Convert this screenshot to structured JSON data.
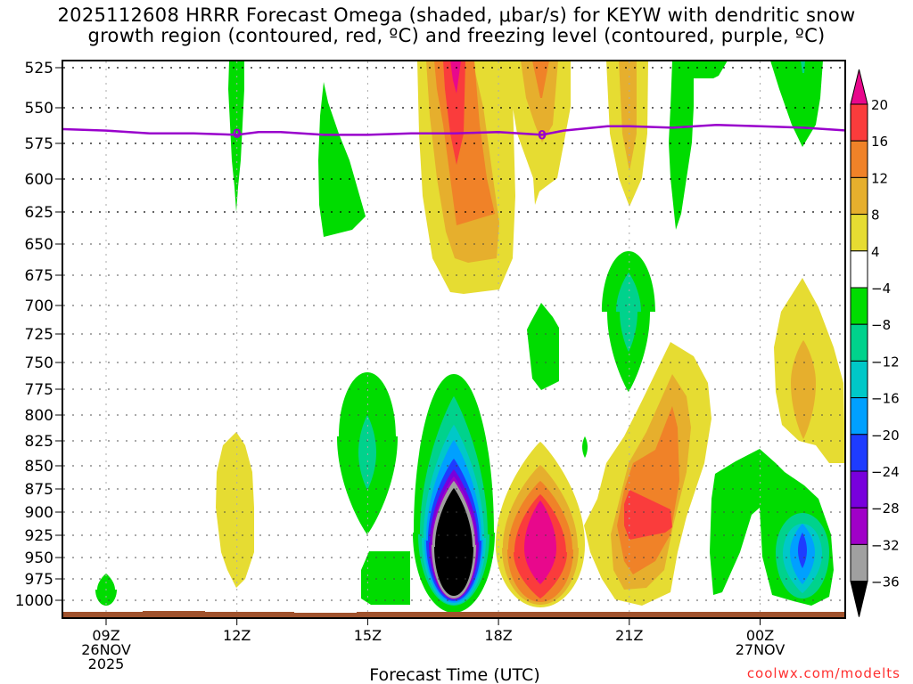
{
  "title": {
    "line1": "2025112608 HRRR Forecast Omega (shaded, μbar/s) for KEYW with dendritic snow",
    "line2": "growth region (contoured, red, ºC) and freezing level (contoured, purple, ºC)"
  },
  "credit": "coolwx.com/modelts",
  "chart_data": {
    "type": "heatmap",
    "subtype": "time-height filled contour",
    "title": "2025112608 HRRR Forecast Omega (shaded, μbar/s) for KEYW with dendritic snow growth region (contoured, red, ºC) and freezing level (contoured, purple, ºC)",
    "xlabel": "Forecast Time (UTC)",
    "ylabel": "",
    "x_unit": "hours from 09Z 26NOV2025",
    "xlim": [
      -1,
      17
    ],
    "y_unit": "hPa",
    "ylim": [
      1010,
      520
    ],
    "y_ticks": [
      525,
      550,
      575,
      600,
      625,
      650,
      675,
      700,
      725,
      750,
      775,
      800,
      825,
      850,
      875,
      900,
      925,
      950,
      975,
      1000
    ],
    "x_ticks": [
      {
        "x": 0,
        "label": [
          "09Z",
          "26NOV",
          "2025"
        ]
      },
      {
        "x": 3,
        "label": [
          "12Z"
        ]
      },
      {
        "x": 6,
        "label": [
          "15Z"
        ]
      },
      {
        "x": 9,
        "label": [
          "18Z"
        ]
      },
      {
        "x": 12,
        "label": [
          "21Z"
        ]
      },
      {
        "x": 15,
        "label": [
          "00Z",
          "27NOV"
        ]
      }
    ],
    "grid": true,
    "colorbar": {
      "label_unit": "μbar/s",
      "levels": [
        20,
        16,
        12,
        8,
        4,
        -4,
        -8,
        -12,
        -16,
        -20,
        -24,
        -28,
        -32,
        -36
      ],
      "bins": [
        {
          "range": ">20",
          "color": "#e8088c"
        },
        {
          "range": "16 to 20",
          "color": "#fa3c3c"
        },
        {
          "range": "12 to 16",
          "color": "#f08228"
        },
        {
          "range": "8 to 12",
          "color": "#e6af2d"
        },
        {
          "range": "4 to 8",
          "color": "#e6dc32"
        },
        {
          "range": "-4 to 4",
          "color": "#ffffff"
        },
        {
          "range": "-8 to -4",
          "color": "#00dc00"
        },
        {
          "range": "-12 to -8",
          "color": "#00d28c"
        },
        {
          "range": "-16 to -12",
          "color": "#00c8c8"
        },
        {
          "range": "-20 to -16",
          "color": "#00a0ff"
        },
        {
          "range": "-24 to -20",
          "color": "#1e3cff"
        },
        {
          "range": "-28 to -24",
          "color": "#7800dc"
        },
        {
          "range": "-32 to -28",
          "color": "#a000c8"
        },
        {
          "range": "-36 to -32",
          "color": "#a0a0a0"
        },
        {
          "range": "<-36",
          "color": "#000000"
        }
      ],
      "placement": "right"
    },
    "freezing_level": {
      "label": "0",
      "color": "#9900cc",
      "points": [
        [
          -1,
          565
        ],
        [
          0,
          566
        ],
        [
          1,
          568
        ],
        [
          2,
          568
        ],
        [
          3,
          569
        ],
        [
          3.5,
          567
        ],
        [
          4,
          567
        ],
        [
          5,
          569
        ],
        [
          6,
          569
        ],
        [
          7,
          568
        ],
        [
          8,
          568
        ],
        [
          9,
          567
        ],
        [
          10,
          569
        ],
        [
          10.5,
          566
        ],
        [
          11.5,
          563
        ],
        [
          12,
          563
        ],
        [
          13,
          564
        ],
        [
          14,
          562
        ],
        [
          15,
          563
        ],
        [
          16,
          564
        ],
        [
          17,
          566
        ]
      ],
      "label_positions": [
        [
          3,
          568
        ],
        [
          10,
          569
        ]
      ]
    },
    "omega_regions": [
      {
        "name": "neg-09z-sfc",
        "min": -8,
        "x": [
          -0.1,
          0.2
        ],
        "p": [
          970,
          1005
        ]
      },
      {
        "name": "pos-12z-low",
        "max": 8,
        "x": [
          2.5,
          3.4
        ],
        "p": [
          820,
          980
        ]
      },
      {
        "name": "neg-12z-upper",
        "min": -8,
        "x": [
          2.9,
          3.1
        ],
        "p": [
          520,
          625
        ]
      },
      {
        "name": "neg-14z-upper",
        "min": -8,
        "x": [
          4.8,
          5.9
        ],
        "p": [
          540,
          640
        ]
      },
      {
        "name": "neg-15z-mid",
        "min": -12,
        "x": [
          5.8,
          7.0
        ],
        "p": [
          775,
          905
        ]
      },
      {
        "name": "neg-15z-sfc",
        "min": -8,
        "x": [
          5.8,
          7.0
        ],
        "p": [
          935,
          1005
        ]
      },
      {
        "name": "neg-17z-core",
        "min": -40,
        "x": [
          6.9,
          8.8
        ],
        "p": [
          780,
          1005
        ]
      },
      {
        "name": "pos-17z-upper",
        "max": 24,
        "x": [
          6.6,
          9.3
        ],
        "p": [
          520,
          690
        ]
      },
      {
        "name": "pos-19z-upper",
        "max": 16,
        "x": [
          8.8,
          10.7
        ],
        "p": [
          520,
          640
        ]
      },
      {
        "name": "pos-19z-low",
        "max": 24,
        "x": [
          8.9,
          11.2
        ],
        "p": [
          855,
          1005
        ]
      },
      {
        "name": "neg-19z-mid",
        "min": -8,
        "x": [
          9.6,
          10.3
        ],
        "p": [
          700,
          790
        ]
      },
      {
        "name": "neg-20z-speck",
        "min": -8,
        "x": [
          9.9,
          10.1
        ],
        "p": [
          810,
          840
        ]
      },
      {
        "name": "pos-21z-upper",
        "max": 12,
        "x": [
          11.5,
          12.6
        ],
        "p": [
          520,
          625
        ]
      },
      {
        "name": "neg-21z-mid",
        "min": -12,
        "x": [
          11.5,
          12.6
        ],
        "p": [
          670,
          775
        ]
      },
      {
        "name": "neg-22z-upper",
        "min": -8,
        "x": [
          12.8,
          14.3
        ],
        "p": [
          520,
          645
        ]
      },
      {
        "name": "pos-21z-low",
        "max": 20,
        "x": [
          11.0,
          14.4
        ],
        "p": [
          740,
          1005
        ]
      },
      {
        "name": "neg-00z-upper",
        "min": -12,
        "x": [
          14.7,
          16.4
        ],
        "p": [
          520,
          580
        ]
      },
      {
        "name": "pos-01z-mid",
        "max": 12,
        "x": [
          15.6,
          17
        ],
        "p": [
          690,
          880
        ]
      },
      {
        "name": "neg-00z-low",
        "min": -24,
        "x": [
          14.4,
          16.9
        ],
        "p": [
          840,
          1005
        ]
      }
    ]
  }
}
